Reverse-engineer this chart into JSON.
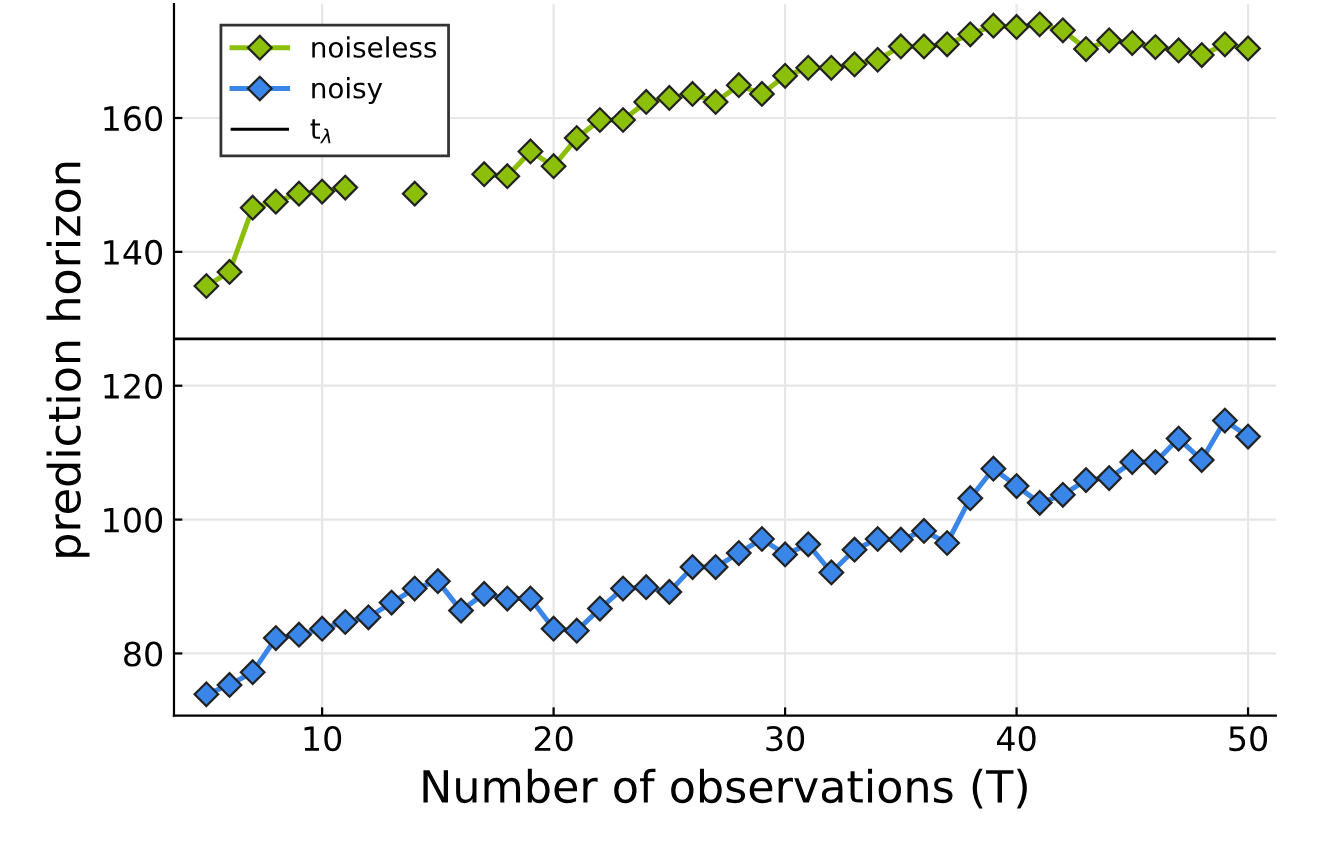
{
  "chart_data": {
    "type": "line",
    "xlabel": "Number of observations (T)",
    "ylabel": "prediction horizon",
    "x": [
      5,
      6,
      7,
      8,
      9,
      10,
      11,
      12,
      13,
      14,
      15,
      16,
      17,
      18,
      19,
      20,
      21,
      22,
      23,
      24,
      25,
      26,
      27,
      28,
      29,
      30,
      31,
      32,
      33,
      34,
      35,
      36,
      37,
      38,
      39,
      40,
      41,
      42,
      43,
      44,
      45,
      46,
      47,
      48,
      49,
      50
    ],
    "series": [
      {
        "name": "noiseless",
        "color": "#8cbf0a",
        "values": [
          134.9,
          137,
          146.6,
          147.5,
          148.7,
          149,
          149.6,
          null,
          null,
          148.7,
          null,
          null,
          151.6,
          151.3,
          155,
          152.8,
          157,
          159.7,
          159.7,
          162.4,
          163,
          163.6,
          162.4,
          164.9,
          163.6,
          166.3,
          167.5,
          167.5,
          168,
          168.7,
          170.7,
          170.7,
          171,
          172.5,
          173.8,
          173.6,
          174,
          173.1,
          170.3,
          171.6,
          171.2,
          170.6,
          170.1,
          169.4,
          171,
          170.4
        ]
      },
      {
        "name": "noisy",
        "color": "#3a86e8",
        "values": [
          73.9,
          75.3,
          77.2,
          82.3,
          82.8,
          83.7,
          84.7,
          85.4,
          87.6,
          89.7,
          90.8,
          86.4,
          88.9,
          88.2,
          88.2,
          83.7,
          83.4,
          86.7,
          89.7,
          89.9,
          89.2,
          92.9,
          92.9,
          95,
          97.1,
          94.8,
          96.3,
          92.1,
          95.5,
          97.1,
          97,
          98.3,
          96.5,
          103.2,
          107.6,
          105,
          102.5,
          103.7,
          105.9,
          106.2,
          108.6,
          108.6,
          112.1,
          108.9,
          114.8,
          112.4
        ]
      }
    ],
    "ref_lines": [
      {
        "axis": "y",
        "value": 127,
        "label": "t$_{λ}$",
        "color": "#000000"
      }
    ],
    "xlim": [
      3.6,
      51.2
    ],
    "ylim": [
      70.7,
      177
    ],
    "xticks": [
      10,
      20,
      30,
      40,
      50
    ],
    "yticks": [
      80,
      100,
      120,
      140,
      160
    ],
    "grid": true,
    "legend": "top left",
    "marker": "diamond",
    "line_style": "solid"
  }
}
